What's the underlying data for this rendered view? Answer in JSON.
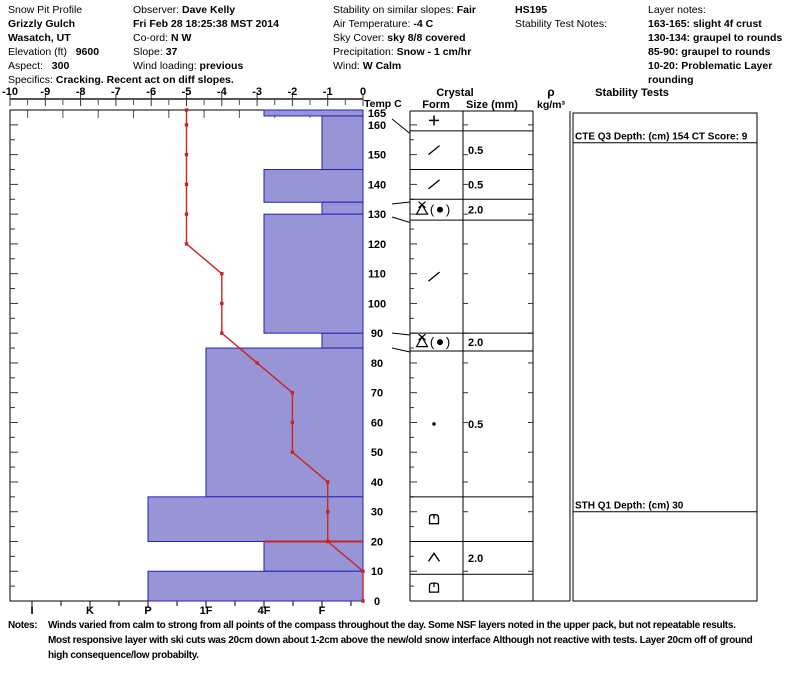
{
  "header": {
    "columns": [
      {
        "rows": [
          {
            "label": "Snow Pit Profile",
            "value": ""
          },
          {
            "label": "",
            "value": "Grizzly Gulch"
          },
          {
            "label": "",
            "value": "Wasatch, UT"
          },
          {
            "label": "Elevation (ft)",
            "value": "9600",
            "gap": true
          },
          {
            "label": "Aspect:",
            "value": "300",
            "gap": true
          },
          {
            "label": "Specifics:",
            "value": "Cracking. Recent act on diff slopes."
          }
        ]
      },
      {
        "rows": [
          {
            "label": "Observer:",
            "value": "Dave Kelly"
          },
          {
            "label": "",
            "value": "Fri Feb 28 18:25:38 MST 2014"
          },
          {
            "label": "Co-ord:",
            "value": "N W"
          },
          {
            "label": "Slope:",
            "value": "37"
          },
          {
            "label": "Wind loading:",
            "value": "previous"
          }
        ]
      },
      {
        "rows": [
          {
            "label": "Stability on similar slopes:",
            "value": "Fair"
          },
          {
            "label": "Air Temperature:",
            "value": "-4 C"
          },
          {
            "label": "Sky Cover:",
            "value": "sky 8/8 covered"
          },
          {
            "label": "Precipitation:",
            "value": "Snow - 1 cm/hr"
          },
          {
            "label": "Wind:",
            "value": "W Calm"
          }
        ]
      },
      {
        "rows": [
          {
            "label": "",
            "value": "HS195"
          },
          {
            "label": "Stability Test Notes:",
            "value": ""
          }
        ]
      },
      {
        "rows": [
          {
            "label": "Layer notes:",
            "value": ""
          },
          {
            "label": "",
            "value": "163-165: slight 4f crust"
          },
          {
            "label": "",
            "value": "130-134: graupel to rounds"
          },
          {
            "label": "",
            "value": "85-90: graupel to rounds"
          },
          {
            "label": "",
            "value": "10-20: Problematic Layer"
          },
          {
            "label": "",
            "value": "rounding"
          }
        ]
      }
    ]
  },
  "chart_data": {
    "type": "bar",
    "title": "Snow pit hardness / temperature profile",
    "depth_axis": {
      "unit": "cm",
      "min": 0,
      "max": 165,
      "top_label": "165",
      "tick_labels": [
        160,
        150,
        140,
        130,
        120,
        110,
        100,
        90,
        80,
        70,
        60,
        50,
        40,
        30,
        20,
        10,
        0
      ]
    },
    "temp_axis": {
      "label": "Temp C",
      "min": -10,
      "max": 0,
      "ticks": [
        -10,
        -9,
        -8,
        -7,
        -6,
        -5,
        -4,
        -3,
        -2,
        -1,
        0
      ]
    },
    "hardness_axis": {
      "categories": [
        "I",
        "K",
        "P",
        "1F",
        "4F",
        "F"
      ]
    },
    "hardness_layers": [
      {
        "top_cm": 165,
        "bottom_cm": 163,
        "hardness": "4F"
      },
      {
        "top_cm": 163,
        "bottom_cm": 145,
        "hardness": "F"
      },
      {
        "top_cm": 145,
        "bottom_cm": 134,
        "hardness": "4F"
      },
      {
        "top_cm": 134,
        "bottom_cm": 130,
        "hardness": "F"
      },
      {
        "top_cm": 130,
        "bottom_cm": 90,
        "hardness": "4F"
      },
      {
        "top_cm": 90,
        "bottom_cm": 85,
        "hardness": "F"
      },
      {
        "top_cm": 85,
        "bottom_cm": 35,
        "hardness": "1F"
      },
      {
        "top_cm": 35,
        "bottom_cm": 20,
        "hardness": "P"
      },
      {
        "top_cm": 20,
        "bottom_cm": 10,
        "hardness": "4F"
      },
      {
        "top_cm": 10,
        "bottom_cm": 0,
        "hardness": "P"
      }
    ],
    "temperature_profile": [
      {
        "depth_cm": 165,
        "temp_c": -5
      },
      {
        "depth_cm": 160,
        "temp_c": -5
      },
      {
        "depth_cm": 150,
        "temp_c": -5
      },
      {
        "depth_cm": 140,
        "temp_c": -5
      },
      {
        "depth_cm": 130,
        "temp_c": -5
      },
      {
        "depth_cm": 120,
        "temp_c": -5
      },
      {
        "depth_cm": 110,
        "temp_c": -4
      },
      {
        "depth_cm": 100,
        "temp_c": -4
      },
      {
        "depth_cm": 90,
        "temp_c": -4
      },
      {
        "depth_cm": 80,
        "temp_c": -3
      },
      {
        "depth_cm": 70,
        "temp_c": -2
      },
      {
        "depth_cm": 60,
        "temp_c": -2
      },
      {
        "depth_cm": 50,
        "temp_c": -2
      },
      {
        "depth_cm": 40,
        "temp_c": -1
      },
      {
        "depth_cm": 30,
        "temp_c": -1
      },
      {
        "depth_cm": 20,
        "temp_c": -1
      },
      {
        "depth_cm": 10,
        "temp_c": 0
      },
      {
        "depth_cm": 0,
        "temp_c": 0
      }
    ],
    "grain_rows": [
      {
        "row_top_cm": 165,
        "row_bottom_cm": 158,
        "form": "plus",
        "size_mm": ""
      },
      {
        "row_top_cm": 158,
        "row_bottom_cm": 145,
        "form": "slash",
        "size_mm": "0.5"
      },
      {
        "row_top_cm": 145,
        "row_bottom_cm": 135,
        "form": "slash",
        "size_mm": "0.5"
      },
      {
        "row_top_cm": 135,
        "row_bottom_cm": 128,
        "form": "graupel-rounds",
        "size_mm": "2.0"
      },
      {
        "row_top_cm": 128,
        "row_bottom_cm": 90,
        "form": "slash",
        "size_mm": ""
      },
      {
        "row_top_cm": 90,
        "row_bottom_cm": 84,
        "form": "graupel-rounds",
        "size_mm": "2.0"
      },
      {
        "row_top_cm": 84,
        "row_bottom_cm": 35,
        "form": "dot",
        "size_mm": "0.5"
      },
      {
        "row_top_cm": 35,
        "row_bottom_cm": 20,
        "form": "facet-rounded",
        "size_mm": ""
      },
      {
        "row_top_cm": 20,
        "row_bottom_cm": 9,
        "form": "depth-hoar",
        "size_mm": "2.0"
      },
      {
        "row_top_cm": 9,
        "row_bottom_cm": 0,
        "form": "facet-rounded",
        "size_mm": ""
      }
    ],
    "column_headers": {
      "crystal": "Crystal",
      "form": "Form",
      "size": "Size (mm)",
      "density_symbol": "ρ",
      "density_unit": "kg/m³",
      "stability": "Stability Tests"
    },
    "stability_annotations": [
      {
        "depth_cm": 154,
        "text": "CTE Q3 Depth: (cm) 154 CT Score: 9"
      },
      {
        "depth_cm": 30,
        "text": "STH Q1 Depth: (cm) 30"
      }
    ],
    "critical_layer_line_cm": 20,
    "colors": {
      "bar_fill": "#9795d6",
      "bar_border": "#2121bd",
      "temp_line": "#cc2222",
      "axis": "#000000",
      "grid_gray": "#888888"
    }
  },
  "notes": {
    "label": "Notes:",
    "lines": [
      "Winds varied from calm to strong from all points of the compass throughout the day.  Some NSF layers noted in the upper pack, but not repeatable results.",
      "Most  responsive layer with ski cuts was 20cm down about 1-2cm above the new/old snow interface Although not reactive with tests. Layer 20cm off of ground",
      "high consequence/low probabilty."
    ]
  }
}
